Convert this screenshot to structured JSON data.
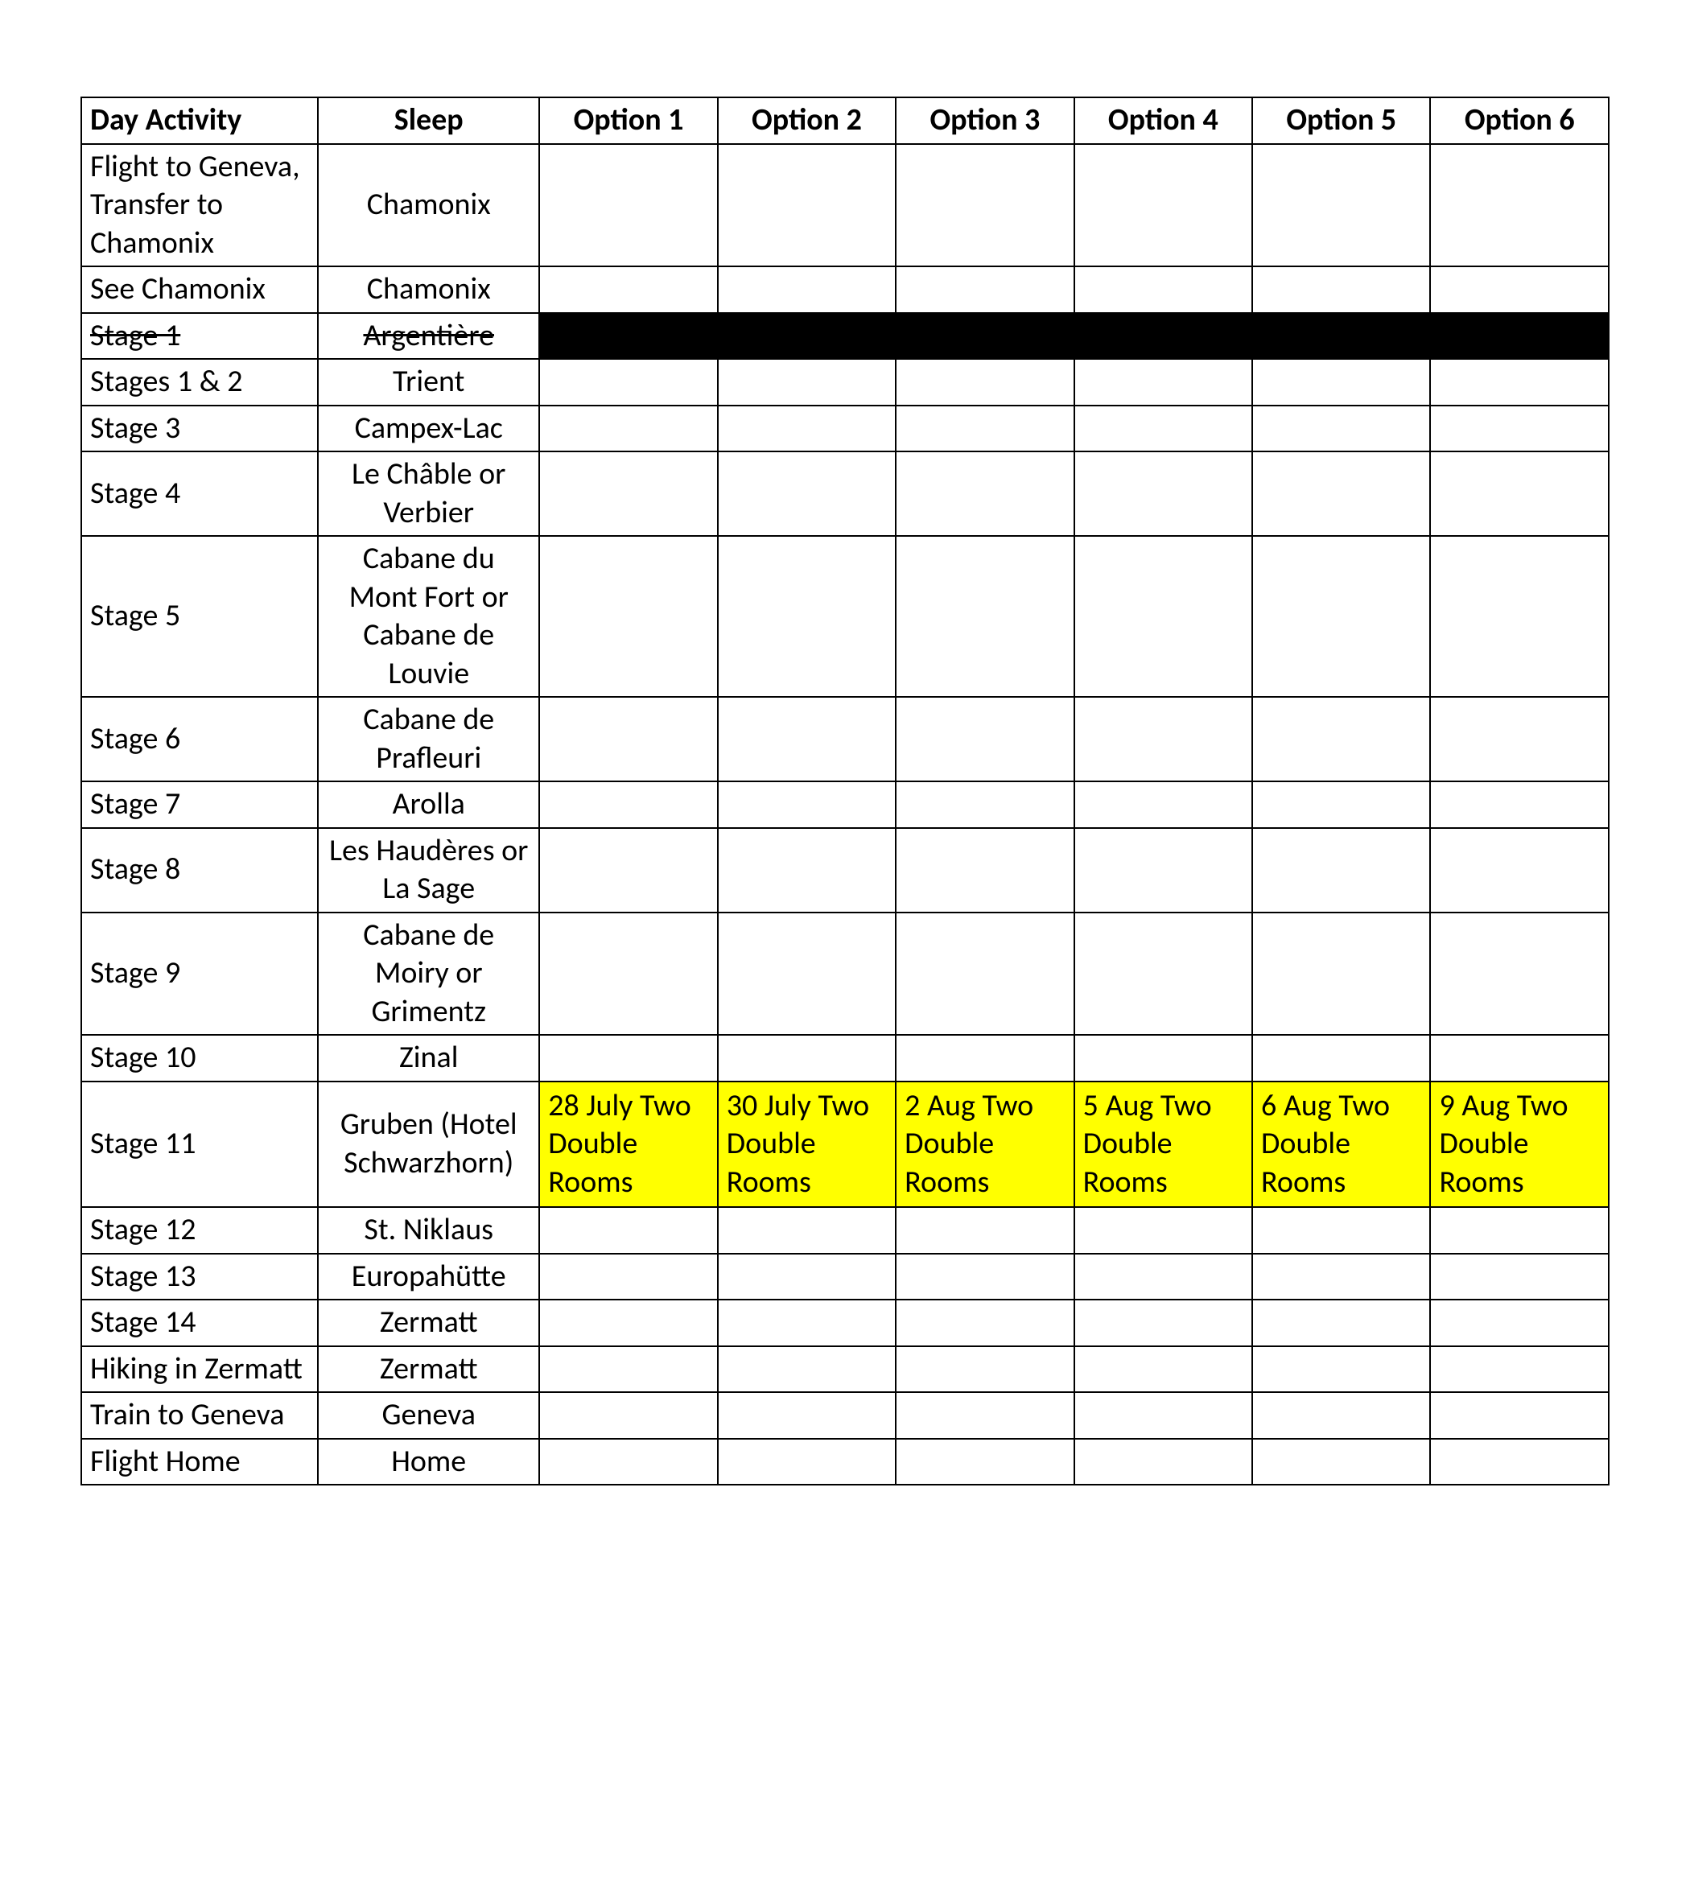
{
  "colors": {
    "page_bg": "#ffffff",
    "text": "#000000",
    "border": "#000000",
    "highlight_yellow": "#ffff00",
    "blackout": "#000000"
  },
  "typography": {
    "font_family": "Calibri",
    "base_fontsize_pt": 28,
    "header_weight": "bold"
  },
  "table": {
    "column_widths_pct": [
      15.5,
      14.5,
      11.67,
      11.67,
      11.67,
      11.67,
      11.67,
      11.67
    ],
    "headers": [
      "Day Activity",
      "Sleep",
      "Option 1",
      "Option 2",
      "Option 3",
      "Option 4",
      "Option 5",
      "Option 6"
    ],
    "rows": [
      {
        "activity": "Flight to Geneva, Transfer to Chamonix",
        "sleep": "Chamonix",
        "strike": false,
        "options_blackout": false,
        "options": [
          "",
          "",
          "",
          "",
          "",
          ""
        ],
        "options_highlight": false
      },
      {
        "activity": "See Chamonix",
        "sleep": "Chamonix",
        "strike": false,
        "options_blackout": false,
        "options": [
          "",
          "",
          "",
          "",
          "",
          ""
        ],
        "options_highlight": false
      },
      {
        "activity": "Stage 1",
        "sleep": "Argentière",
        "strike": true,
        "options_blackout": true,
        "options": [
          "",
          "",
          "",
          "",
          "",
          ""
        ],
        "options_highlight": false
      },
      {
        "activity": "Stages 1 & 2",
        "sleep": "Trient",
        "strike": false,
        "options_blackout": false,
        "options": [
          "",
          "",
          "",
          "",
          "",
          ""
        ],
        "options_highlight": false
      },
      {
        "activity": "Stage 3",
        "sleep": "Campex-Lac",
        "strike": false,
        "options_blackout": false,
        "options": [
          "",
          "",
          "",
          "",
          "",
          ""
        ],
        "options_highlight": false
      },
      {
        "activity": "Stage 4",
        "sleep": "Le Châble or Verbier",
        "strike": false,
        "options_blackout": false,
        "options": [
          "",
          "",
          "",
          "",
          "",
          ""
        ],
        "options_highlight": false
      },
      {
        "activity": "Stage 5",
        "sleep": "Cabane du Mont Fort or Cabane de Louvie",
        "strike": false,
        "options_blackout": false,
        "options": [
          "",
          "",
          "",
          "",
          "",
          ""
        ],
        "options_highlight": false
      },
      {
        "activity": "Stage 6",
        "sleep": "Cabane de Prafleuri",
        "strike": false,
        "options_blackout": false,
        "options": [
          "",
          "",
          "",
          "",
          "",
          ""
        ],
        "options_highlight": false
      },
      {
        "activity": "Stage 7",
        "sleep": "Arolla",
        "strike": false,
        "options_blackout": false,
        "options": [
          "",
          "",
          "",
          "",
          "",
          ""
        ],
        "options_highlight": false
      },
      {
        "activity": "Stage 8",
        "sleep": "Les Haudères or La Sage",
        "strike": false,
        "options_blackout": false,
        "options": [
          "",
          "",
          "",
          "",
          "",
          ""
        ],
        "options_highlight": false
      },
      {
        "activity": "Stage 9",
        "sleep": "Cabane de Moiry or Grimentz",
        "strike": false,
        "options_blackout": false,
        "options": [
          "",
          "",
          "",
          "",
          "",
          ""
        ],
        "options_highlight": false
      },
      {
        "activity": "Stage 10",
        "sleep": "Zinal",
        "strike": false,
        "options_blackout": false,
        "options": [
          "",
          "",
          "",
          "",
          "",
          ""
        ],
        "options_highlight": false
      },
      {
        "activity": "Stage 11",
        "sleep": "Gruben (Hotel Schwarzhorn)",
        "strike": false,
        "options_blackout": false,
        "options": [
          "28 July Two Double Rooms",
          "30 July Two Double Rooms",
          "2 Aug Two Double Rooms",
          "5 Aug Two Double Rooms",
          "6 Aug Two Double Rooms",
          "9 Aug Two Double Rooms"
        ],
        "options_highlight": true
      },
      {
        "activity": "Stage 12",
        "sleep": "St. Niklaus",
        "strike": false,
        "options_blackout": false,
        "options": [
          "",
          "",
          "",
          "",
          "",
          ""
        ],
        "options_highlight": false
      },
      {
        "activity": "Stage 13",
        "sleep": "Europahütte",
        "strike": false,
        "options_blackout": false,
        "options": [
          "",
          "",
          "",
          "",
          "",
          ""
        ],
        "options_highlight": false
      },
      {
        "activity": "Stage 14",
        "sleep": "Zermatt",
        "strike": false,
        "options_blackout": false,
        "options": [
          "",
          "",
          "",
          "",
          "",
          ""
        ],
        "options_highlight": false
      },
      {
        "activity": "Hiking in Zermatt",
        "sleep": "Zermatt",
        "strike": false,
        "options_blackout": false,
        "options": [
          "",
          "",
          "",
          "",
          "",
          ""
        ],
        "options_highlight": false
      },
      {
        "activity": "Train to Geneva",
        "sleep": "Geneva",
        "strike": false,
        "options_blackout": false,
        "options": [
          "",
          "",
          "",
          "",
          "",
          ""
        ],
        "options_highlight": false
      },
      {
        "activity": "Flight Home",
        "sleep": "Home",
        "strike": false,
        "options_blackout": false,
        "options": [
          "",
          "",
          "",
          "",
          "",
          ""
        ],
        "options_highlight": false
      }
    ]
  }
}
